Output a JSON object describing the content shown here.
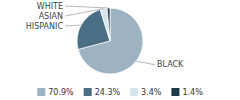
{
  "chart_data": {
    "type": "pie",
    "categories": [
      "BLACK",
      "HISPANIC",
      "ASIAN",
      "WHITE"
    ],
    "values": [
      70.9,
      24.3,
      3.4,
      1.4
    ],
    "value_labels": [
      "70.9%",
      "24.3%",
      "3.4%",
      "1.4%"
    ],
    "colors": [
      "#9eb3c2",
      "#4a6f85",
      "#d6e4ec",
      "#1c3a4a"
    ],
    "legend": "bottom"
  }
}
